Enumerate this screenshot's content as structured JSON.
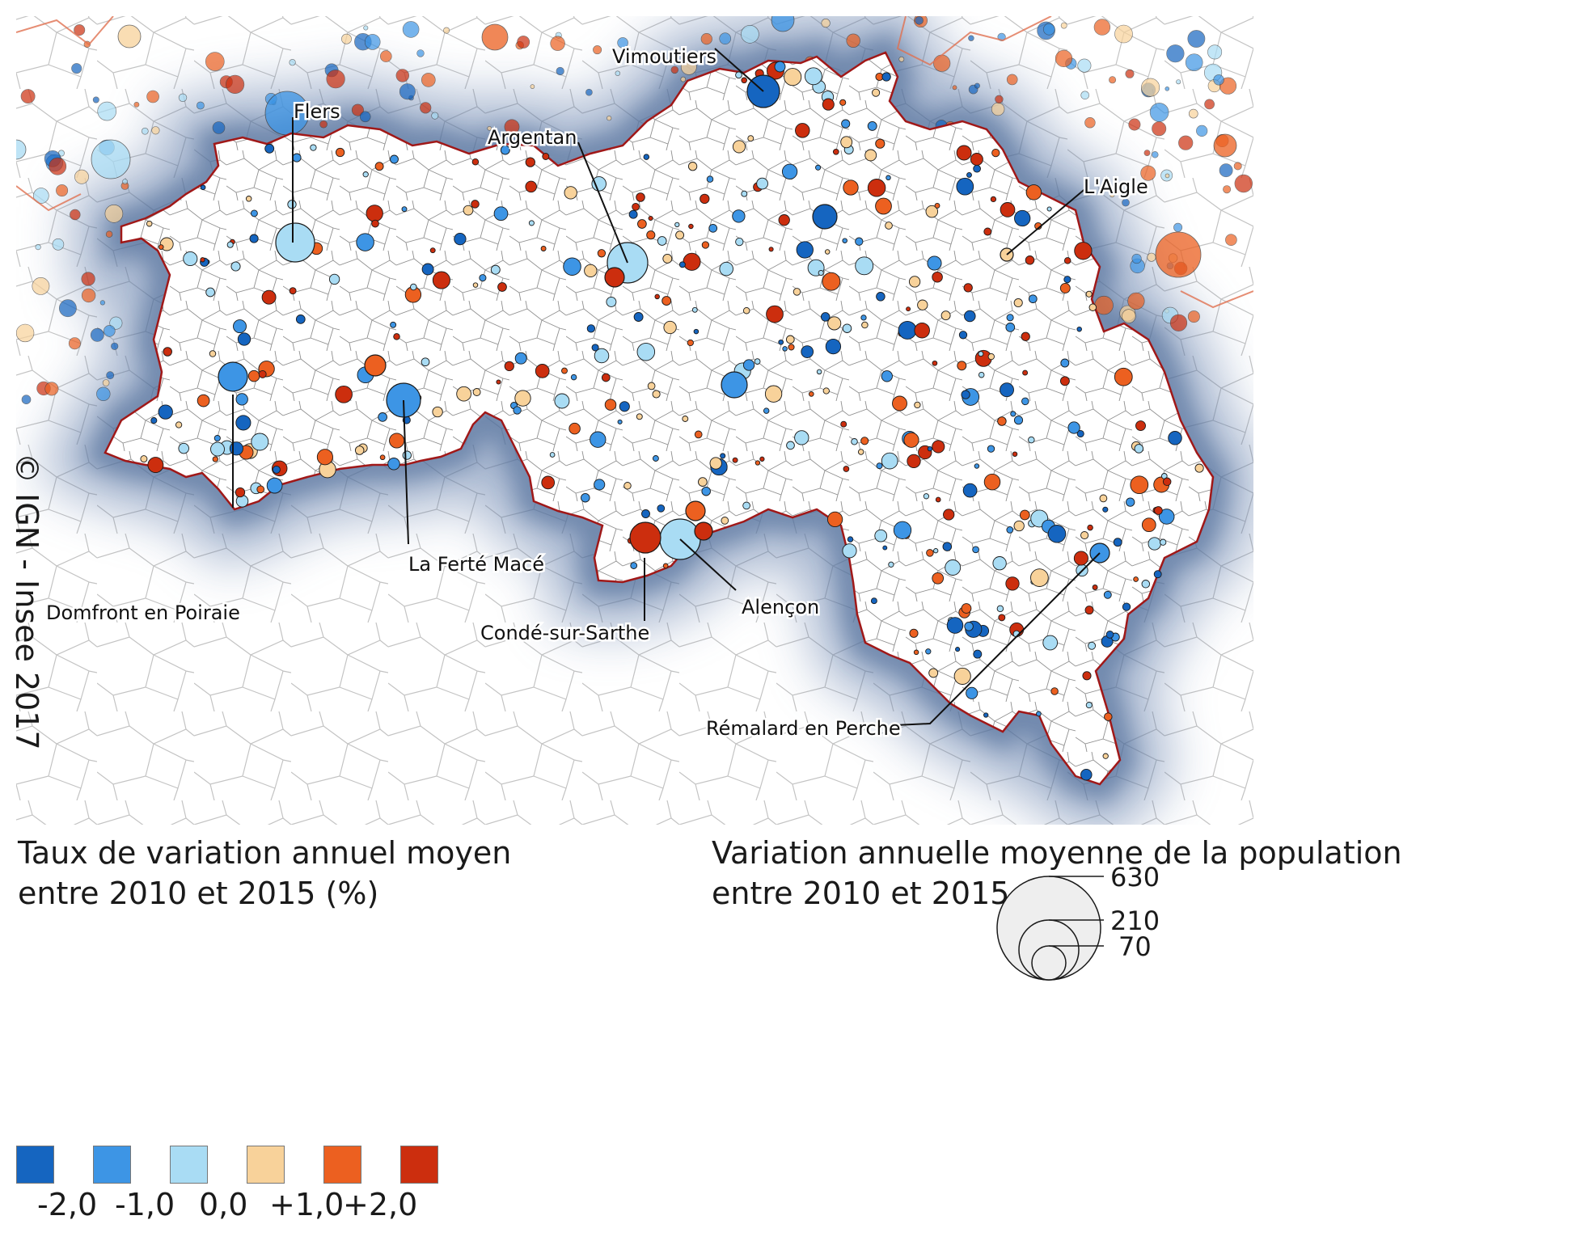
{
  "credit": "© IGN - Insee 2017",
  "colors": {
    "class_colors": [
      "#1565c0",
      "#3d95e5",
      "#a9dcf4",
      "#f8d29a",
      "#ec6020",
      "#cc2e0e"
    ],
    "boundary": "#a01818",
    "halo": "#5f7aa8",
    "neighbor_fill": "#e8eef6"
  },
  "places": [
    {
      "name": "Vimoutiers"
    },
    {
      "name": "Flers"
    },
    {
      "name": "Argentan"
    },
    {
      "name": "L'Aigle"
    },
    {
      "name": "La Ferté Macé"
    },
    {
      "name": "Domfront en Poiraie"
    },
    {
      "name": "Alençon"
    },
    {
      "name": "Condé-sur-Sarthe"
    },
    {
      "name": "Rémalard en Perche"
    }
  ],
  "legend_color": {
    "title_line1": "Taux de variation annuel moyen",
    "title_line2": "entre 2010 et 2015 (%)",
    "labels": [
      "-2,0",
      "-1,0",
      "0,0",
      "+1,0",
      "+2,0"
    ]
  },
  "legend_size": {
    "title_line1": "Variation annuelle moyenne de la population",
    "title_line2": "entre 2010 et 2015",
    "values": [
      "630",
      "210",
      "70"
    ]
  }
}
